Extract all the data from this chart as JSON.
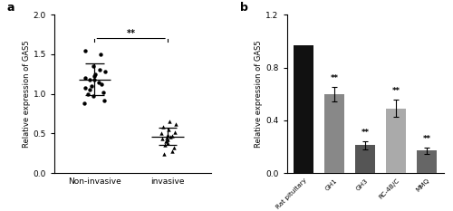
{
  "panel_a": {
    "ylabel": "Relative expression of GAS5",
    "ylim": [
      0.0,
      2.0
    ],
    "yticks": [
      0.0,
      0.5,
      1.0,
      1.5,
      2.0
    ],
    "group1_label": "Non-invasive",
    "group2_label": "invasive",
    "group1_mean": 1.18,
    "group1_sd": 0.2,
    "group2_mean": 0.46,
    "group2_sd": 0.11,
    "group1_points": [
      1.55,
      1.5,
      1.35,
      1.3,
      1.28,
      1.25,
      1.22,
      1.2,
      1.18,
      1.18,
      1.15,
      1.12,
      1.1,
      1.08,
      1.05,
      1.02,
      1.0,
      0.97,
      0.92,
      0.88
    ],
    "group2_points": [
      0.65,
      0.62,
      0.58,
      0.55,
      0.52,
      0.5,
      0.48,
      0.47,
      0.46,
      0.45,
      0.44,
      0.42,
      0.4,
      0.38,
      0.35,
      0.32,
      0.28,
      0.24
    ],
    "sig_text": "**",
    "panel_label": "a"
  },
  "panel_b": {
    "ylabel": "Relative expression of GAS5",
    "ylim": [
      0.0,
      1.2
    ],
    "yticks": [
      0.0,
      0.4,
      0.8,
      1.2
    ],
    "categories": [
      "Rat pituitary",
      "GH1",
      "GH3",
      "RC-4B/C",
      "MMQ"
    ],
    "values": [
      0.97,
      0.6,
      0.21,
      0.49,
      0.17
    ],
    "errors": [
      0.0,
      0.055,
      0.03,
      0.065,
      0.025
    ],
    "colors": [
      "#111111",
      "#888888",
      "#555555",
      "#aaaaaa",
      "#666666"
    ],
    "sig_labels": [
      "",
      "**",
      "**",
      "**",
      "**"
    ],
    "panel_label": "b"
  }
}
